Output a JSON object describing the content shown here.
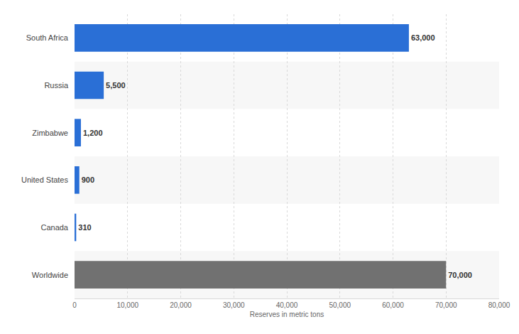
{
  "chart_data": {
    "type": "bar",
    "orientation": "horizontal",
    "categories": [
      "South Africa",
      "Russia",
      "Zimbabwe",
      "United States",
      "Canada",
      "Worldwide"
    ],
    "values": [
      63000,
      5500,
      1200,
      900,
      310,
      70000
    ],
    "value_labels": [
      "63,000",
      "5,500",
      "1,200",
      "900",
      "310",
      "70,000"
    ],
    "colors": [
      "#2a6fd6",
      "#2a6fd6",
      "#2a6fd6",
      "#2a6fd6",
      "#2a6fd6",
      "#717171"
    ],
    "data_labels": true,
    "xlabel": "Reserves in metric tons",
    "xlim": [
      0,
      80000
    ],
    "xticks": [
      0,
      {
        "value": 10000,
        "label": "10,000"
      },
      {
        "value": 20000,
        "label": "20,000"
      },
      {
        "value": 30000,
        "label": "30,000"
      },
      {
        "value": 40000,
        "label": "40,000"
      },
      {
        "value": 50000,
        "label": "50,000"
      },
      {
        "value": 60000,
        "label": "60,000"
      },
      {
        "value": 70000,
        "label": "70,000"
      },
      {
        "value": 80000,
        "label": "80,000"
      }
    ],
    "grid": true
  }
}
